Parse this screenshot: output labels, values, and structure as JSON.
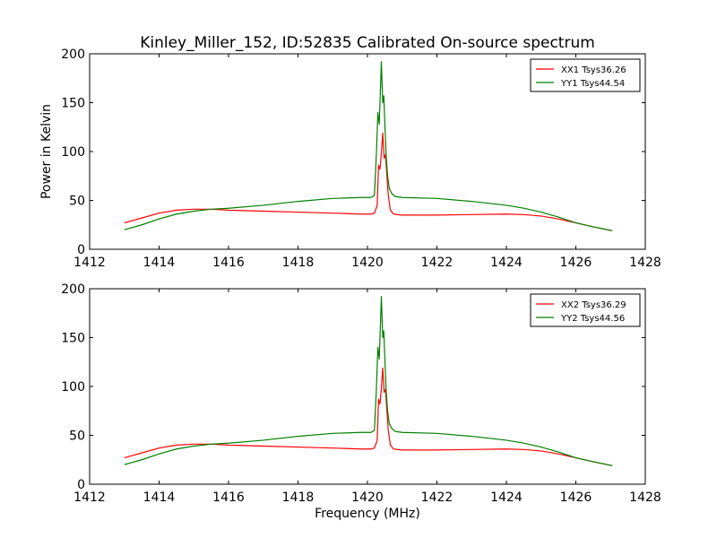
{
  "figure": {
    "title": "Kinley_Miller_152, ID:52835 Calibrated On-source spectrum",
    "xlabel": "Frequency (MHz)",
    "ylabel": "Power in Kelvin"
  },
  "chart_data": [
    {
      "type": "line",
      "title": "Kinley_Miller_152, ID:52835 Calibrated On-source spectrum",
      "xlabel": "",
      "ylabel": "Power in Kelvin",
      "xlim": [
        1412,
        1428
      ],
      "ylim": [
        0,
        200
      ],
      "xticks": [
        "1412",
        "1414",
        "1416",
        "1418",
        "1420",
        "1422",
        "1424",
        "1426",
        "1428"
      ],
      "yticks": [
        "0",
        "50",
        "100",
        "150",
        "200"
      ],
      "legend_position": "top-right",
      "grid": false,
      "series": [
        {
          "name": "XX1 Tsys36.26",
          "color": "#ff0000",
          "x": [
            1413.0,
            1413.5,
            1414.0,
            1414.5,
            1415.0,
            1415.5,
            1416.0,
            1417.0,
            1418.0,
            1419.0,
            1419.8,
            1420.1,
            1420.2,
            1420.28,
            1420.32,
            1420.36,
            1420.4,
            1420.44,
            1420.48,
            1420.52,
            1420.56,
            1420.6,
            1420.66,
            1420.75,
            1421.0,
            1422.0,
            1423.0,
            1424.0,
            1424.5,
            1425.0,
            1425.5,
            1426.0,
            1426.5,
            1427.05
          ],
          "y": [
            27,
            32,
            37,
            40,
            41,
            41,
            40,
            39,
            38,
            37,
            36,
            36,
            37,
            45,
            86,
            82,
            98,
            119,
            93,
            97,
            75,
            55,
            40,
            36,
            35,
            35,
            35.5,
            36,
            35.5,
            34,
            31,
            27,
            23,
            19
          ]
        },
        {
          "name": "YY1 Tsys44.54",
          "color": "#008000",
          "x": [
            1413.0,
            1413.5,
            1414.0,
            1414.5,
            1415.0,
            1415.5,
            1416.0,
            1417.0,
            1418.0,
            1419.0,
            1419.8,
            1420.1,
            1420.2,
            1420.26,
            1420.3,
            1420.34,
            1420.37,
            1420.4,
            1420.44,
            1420.47,
            1420.51,
            1420.54,
            1420.58,
            1420.63,
            1420.7,
            1420.8,
            1421.0,
            1422.0,
            1423.0,
            1424.0,
            1424.5,
            1425.0,
            1425.5,
            1426.0,
            1426.5,
            1427.05
          ],
          "y": [
            20,
            25,
            31,
            36,
            39,
            41,
            42,
            45,
            49,
            52,
            53,
            53,
            55,
            100,
            140,
            128,
            160,
            192,
            150,
            157,
            120,
            95,
            75,
            62,
            57,
            54,
            53,
            52,
            49,
            45,
            42,
            38,
            33,
            27,
            23,
            19
          ]
        }
      ]
    },
    {
      "type": "line",
      "title": "",
      "xlabel": "Frequency (MHz)",
      "ylabel": "",
      "xlim": [
        1412,
        1428
      ],
      "ylim": [
        0,
        200
      ],
      "xticks": [
        "1412",
        "1414",
        "1416",
        "1418",
        "1420",
        "1422",
        "1424",
        "1426",
        "1428"
      ],
      "yticks": [
        "0",
        "50",
        "100",
        "150",
        "200"
      ],
      "legend_position": "top-right",
      "grid": false,
      "series": [
        {
          "name": "XX2 Tsys36.29",
          "color": "#ff0000",
          "x": [
            1413.0,
            1413.5,
            1414.0,
            1414.5,
            1415.0,
            1415.5,
            1416.0,
            1417.0,
            1418.0,
            1419.0,
            1419.8,
            1420.1,
            1420.2,
            1420.28,
            1420.32,
            1420.36,
            1420.4,
            1420.44,
            1420.48,
            1420.52,
            1420.56,
            1420.6,
            1420.66,
            1420.75,
            1421.0,
            1422.0,
            1423.0,
            1424.0,
            1424.5,
            1425.0,
            1425.5,
            1426.0,
            1426.5,
            1427.05
          ],
          "y": [
            27,
            32,
            37,
            40,
            41,
            41,
            40,
            39,
            38,
            37,
            36,
            36,
            37,
            45,
            87,
            82,
            98,
            119,
            94,
            97,
            75,
            55,
            40,
            36,
            35,
            35,
            35.5,
            36,
            35.5,
            34,
            31,
            27,
            23,
            19
          ]
        },
        {
          "name": "YY2 Tsys44.56",
          "color": "#008000",
          "x": [
            1413.0,
            1413.5,
            1414.0,
            1414.5,
            1415.0,
            1415.5,
            1416.0,
            1417.0,
            1418.0,
            1419.0,
            1419.8,
            1420.1,
            1420.2,
            1420.26,
            1420.3,
            1420.34,
            1420.37,
            1420.4,
            1420.44,
            1420.47,
            1420.51,
            1420.54,
            1420.58,
            1420.63,
            1420.7,
            1420.8,
            1421.0,
            1422.0,
            1423.0,
            1424.0,
            1424.5,
            1425.0,
            1425.5,
            1426.0,
            1426.5,
            1427.05
          ],
          "y": [
            20,
            25,
            31,
            36,
            39,
            41,
            42,
            45,
            49,
            52,
            53,
            53,
            55,
            100,
            140,
            128,
            160,
            192,
            150,
            157,
            120,
            95,
            75,
            62,
            57,
            54,
            53,
            52,
            49,
            45,
            42,
            38,
            33,
            27,
            23,
            19
          ]
        }
      ]
    }
  ]
}
